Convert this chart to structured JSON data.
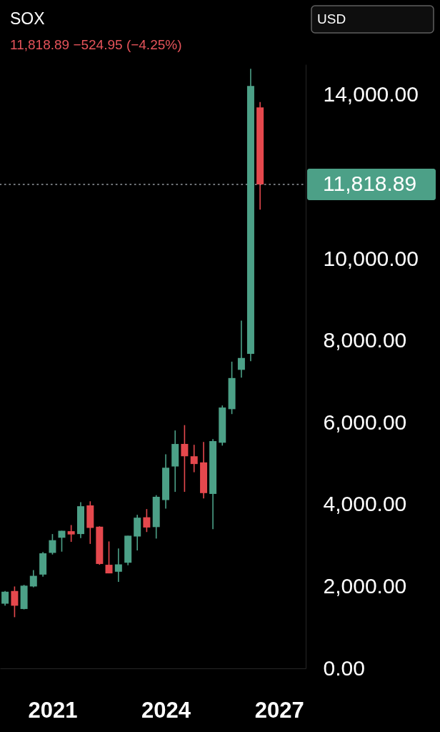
{
  "chart_data": {
    "type": "candlestick",
    "title": "SOX",
    "subtitle": "11,818.89  −524.95 (−4.25%)",
    "annotations": [
      "USD"
    ],
    "x": [
      "2019-10",
      "2020-01",
      "2020-04",
      "2020-07",
      "2020-10",
      "2021-01",
      "2021-04",
      "2021-07",
      "2021-10",
      "2022-01",
      "2022-04",
      "2022-07",
      "2022-10",
      "2023-01",
      "2023-04",
      "2023-07",
      "2023-10",
      "2024-01",
      "2024-04",
      "2024-07",
      "2024-10",
      "2025-01",
      "2025-04",
      "2025-07",
      "2025-10",
      "2026-01",
      "2026-04",
      "2026-07"
    ],
    "ohlc": [
      [
        1580,
        1890,
        1530,
        1870
      ],
      [
        1890,
        2000,
        1250,
        1530
      ],
      [
        1450,
        2040,
        1440,
        2020
      ],
      [
        2000,
        2400,
        1980,
        2260
      ],
      [
        2290,
        2840,
        2240,
        2810
      ],
      [
        2820,
        3280,
        2780,
        3130
      ],
      [
        3190,
        3360,
        2850,
        3360
      ],
      [
        3350,
        3500,
        3090,
        3270
      ],
      [
        3280,
        4060,
        3180,
        3960
      ],
      [
        3980,
        4080,
        3040,
        3430
      ],
      [
        3460,
        3470,
        2530,
        2550
      ],
      [
        2530,
        3100,
        2320,
        2320
      ],
      [
        2360,
        2930,
        2110,
        2540
      ],
      [
        2580,
        3240,
        2520,
        3240
      ],
      [
        3220,
        3750,
        2880,
        3680
      ],
      [
        3690,
        3890,
        3330,
        3440
      ],
      [
        3450,
        4230,
        3170,
        4190
      ],
      [
        4110,
        5230,
        3900,
        4900
      ],
      [
        4930,
        5810,
        4310,
        5480
      ],
      [
        5480,
        5940,
        4310,
        5180
      ],
      [
        5180,
        5460,
        4790,
        4990
      ],
      [
        5030,
        5530,
        4150,
        4280
      ],
      [
        4260,
        5600,
        3400,
        5550
      ],
      [
        5510,
        6420,
        5440,
        6370
      ],
      [
        6330,
        7490,
        6210,
        7090
      ],
      [
        7290,
        8490,
        7100,
        7580
      ],
      [
        7680,
        14640,
        7500,
        14220
      ],
      [
        13700,
        13830,
        11200,
        11818.89
      ]
    ],
    "colors": [
      "#4ca087",
      "#e5484d",
      "#4ca087",
      "#4ca087",
      "#4ca087",
      "#4ca087",
      "#4ca087",
      "#e5484d",
      "#4ca087",
      "#e5484d",
      "#e5484d",
      "#e5484d",
      "#4ca087",
      "#4ca087",
      "#4ca087",
      "#e5484d",
      "#4ca087",
      "#4ca087",
      "#4ca087",
      "#e5484d",
      "#e5484d",
      "#e5484d",
      "#4ca087",
      "#4ca087",
      "#4ca087",
      "#4ca087",
      "#4ca087",
      "#e5484d"
    ],
    "xlim": [
      "2019-08-13",
      "2027-09-15"
    ],
    "xticks": [
      "2021",
      "2024",
      "2027"
    ],
    "ylim": [
      0,
      14750
    ],
    "yticks": [
      {
        "value": 0,
        "label": "0.00"
      },
      {
        "value": 2000,
        "label": "2,000.00"
      },
      {
        "value": 4000,
        "label": "4,000.00"
      },
      {
        "value": 6000,
        "label": "6,000.00"
      },
      {
        "value": 8000,
        "label": "8,000.00"
      },
      {
        "value": 10000,
        "label": "10,000.00"
      },
      {
        "value": 14000,
        "label": "14,000.00"
      }
    ],
    "ref_lines": [
      {
        "axis": "y",
        "value": 11818.89,
        "label": "11,818.89",
        "color": "#9aa0a6",
        "line_style": "dotted"
      }
    ]
  }
}
